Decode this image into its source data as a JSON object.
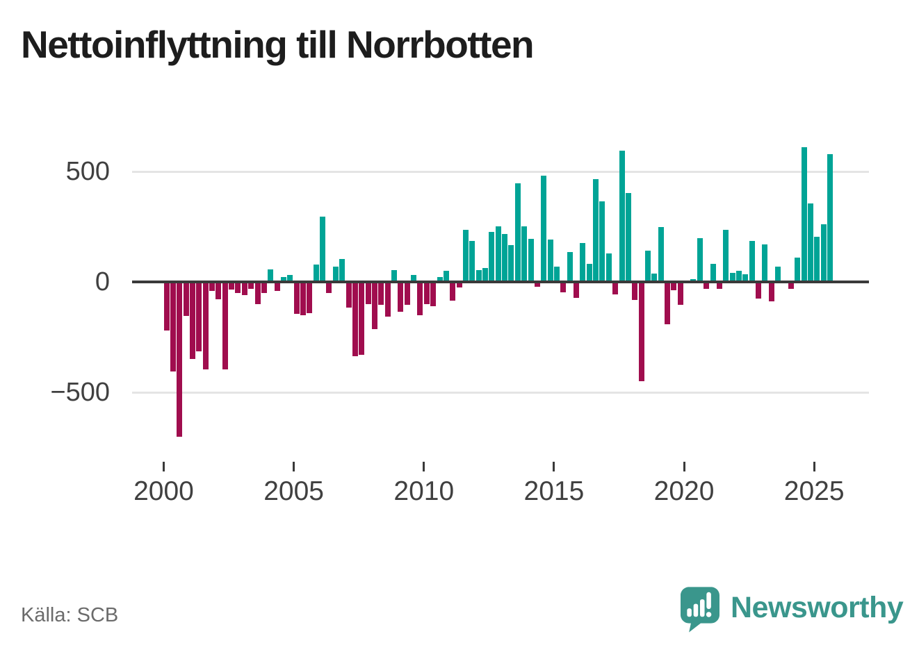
{
  "title": "Nettoinflyttning till Norrbotten",
  "source_label": "Källa: SCB",
  "brand": {
    "name": "Newsworthy",
    "icon": "bar-chart-speech-bubble-icon",
    "color": "#3a968c"
  },
  "colors": {
    "positive_bar": "#00a496",
    "negative_bar": "#a00d4e",
    "zero_axis": "#3a3a3a",
    "gridline": "#e4e4e4",
    "axis_text": "#404040",
    "title_text": "#1d1d1d",
    "source_text": "#6b6b6b"
  },
  "chart_data": {
    "type": "bar",
    "title": "Nettoinflyttning till Norrbotten",
    "xlabel": "",
    "ylabel": "",
    "frequency": "quarterly",
    "start_period": "2000-Q1",
    "end_period": "2025-Q3",
    "ylim": [
      -780,
      640
    ],
    "grid": "horizontal",
    "legend": "none",
    "y_ticks": [
      {
        "label": "500",
        "value": 500
      },
      {
        "label": "0",
        "value": 0
      },
      {
        "label": "−500",
        "value": -500
      }
    ],
    "x_tick_labels": [
      "2000",
      "2005",
      "2010",
      "2015",
      "2020",
      "2025"
    ],
    "series_note": "net migration per quarter; teal = positive, crimson = negative",
    "values": [
      -220,
      -405,
      -700,
      -155,
      -350,
      -315,
      -395,
      -40,
      -80,
      -395,
      -35,
      -50,
      -60,
      -30,
      -100,
      -50,
      58,
      -42,
      21,
      31,
      -145,
      -150,
      -140,
      80,
      295,
      -50,
      70,
      105,
      -115,
      -335,
      -330,
      -100,
      -213,
      -105,
      -158,
      53,
      -135,
      -105,
      33,
      -150,
      -100,
      -110,
      21,
      49,
      -85,
      -26,
      235,
      185,
      52,
      62,
      227,
      252,
      218,
      168,
      447,
      251,
      195,
      -21,
      480,
      193,
      69,
      -46,
      134,
      -73,
      177,
      83,
      464,
      364,
      128,
      -57,
      595,
      402,
      -83,
      -450,
      143,
      37,
      247,
      -191,
      -38,
      -104,
      3,
      12,
      197,
      -33,
      83,
      -30,
      236,
      42,
      50,
      34,
      187,
      -77,
      171,
      -87,
      69,
      0,
      -30,
      110,
      610,
      355,
      203,
      260,
      580
    ]
  }
}
